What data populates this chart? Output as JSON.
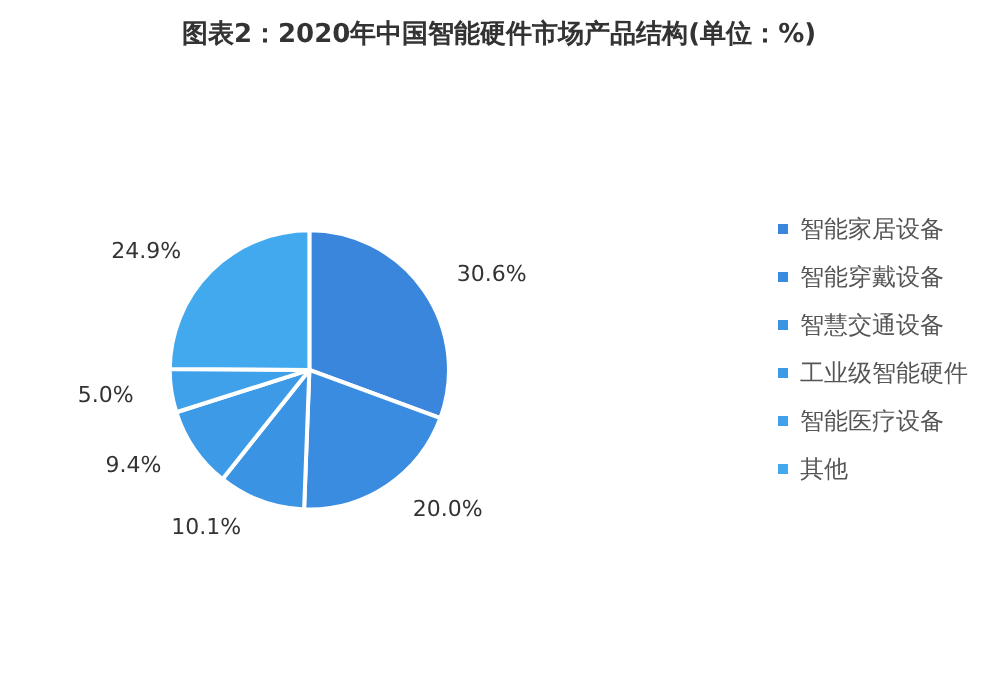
{
  "chart_data": {
    "type": "pie",
    "title": "图表2：2020年中国智能硬件市场产品结构(单位：%)",
    "categories": [
      "智能家居设备",
      "智能穿戴设备",
      "智慧交通设备",
      "工业级智能硬件",
      "智能医疗设备",
      "其他"
    ],
    "values": [
      30.6,
      20.0,
      10.1,
      9.4,
      5.0,
      24.9
    ],
    "value_labels": [
      "30.6%",
      "20.0%",
      "10.1%",
      "9.4%",
      "5.0%",
      "24.9%"
    ],
    "colors": [
      "#3a86dc",
      "#3a8ce0",
      "#3b93e3",
      "#3d9ae6",
      "#3ea1ea",
      "#42a9ee"
    ],
    "legend": "right"
  }
}
